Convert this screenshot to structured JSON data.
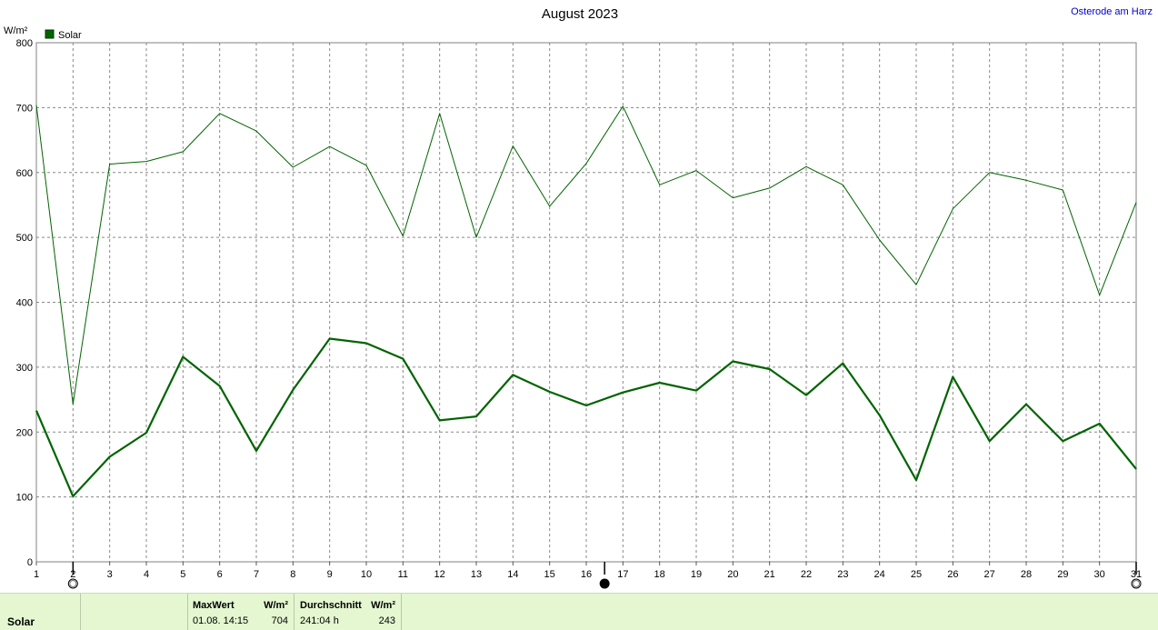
{
  "header": {
    "title": "August 2023",
    "station": "Osterode am Harz",
    "unit": "W/m²"
  },
  "legend": {
    "label": "Solar",
    "color": "#006400"
  },
  "chart_data": {
    "type": "line",
    "title": "August 2023",
    "ylabel": "W/m²",
    "xlabel": "",
    "ylim": [
      0,
      800
    ],
    "yticks": [
      0,
      100,
      200,
      300,
      400,
      500,
      600,
      700,
      800
    ],
    "x": [
      1,
      2,
      3,
      4,
      5,
      6,
      7,
      8,
      9,
      10,
      11,
      12,
      13,
      14,
      15,
      16,
      17,
      18,
      19,
      20,
      21,
      22,
      23,
      24,
      25,
      26,
      27,
      28,
      29,
      30,
      31
    ],
    "grid": true,
    "legend_position": "top-left",
    "series": [
      {
        "name": "Solar",
        "color": "#006400",
        "style": "thin",
        "values": [
          704,
          243,
          613,
          617,
          632,
          691,
          664,
          608,
          640,
          611,
          502,
          691,
          500,
          641,
          548,
          614,
          702,
          581,
          603,
          561,
          576,
          609,
          581,
          496,
          427,
          544,
          600,
          588,
          573,
          411,
          554
        ]
      },
      {
        "name": "Solar",
        "color": "#006400",
        "style": "thick",
        "values": [
          233,
          101,
          162,
          199,
          316,
          271,
          171,
          265,
          344,
          337,
          313,
          218,
          224,
          288,
          262,
          241,
          261,
          276,
          264,
          309,
          297,
          257,
          306,
          226,
          126,
          285,
          186,
          243,
          186,
          213,
          143
        ]
      }
    ],
    "markers": [
      {
        "x": 2,
        "symbol": "empty-circle"
      },
      {
        "x": 16.5,
        "symbol": "filled-circle"
      },
      {
        "x": 31,
        "symbol": "empty-circle"
      }
    ]
  },
  "footer": {
    "label": "Solar",
    "max_header": "MaxWert",
    "max_unit": "W/m²",
    "max_when": "01.08.  14:15",
    "max_value": "704",
    "avg_header": "Durchschnitt",
    "avg_unit": "W/m²",
    "avg_hours": "241:04 h",
    "avg_value": "243"
  }
}
